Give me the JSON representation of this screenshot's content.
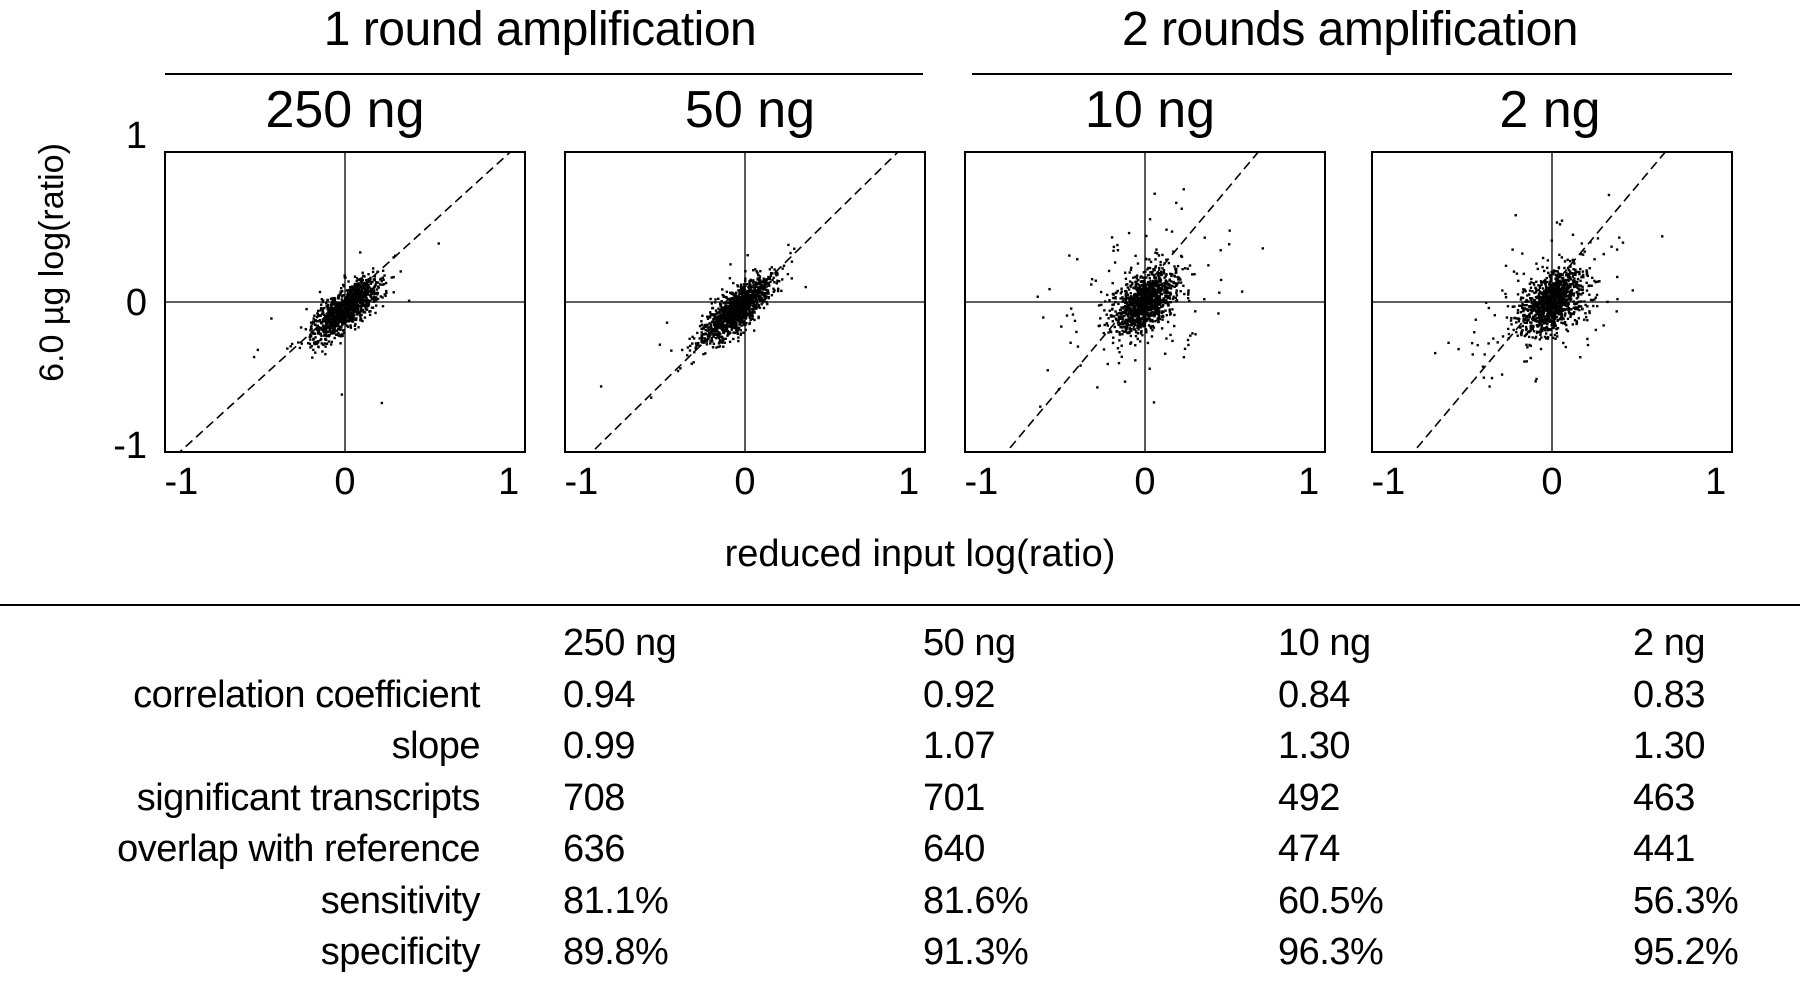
{
  "group_titles": [
    "1 round amplification",
    "2 rounds amplification"
  ],
  "y_axis_label": "6.0 µg log(ratio)",
  "x_axis_label": "reduced input log(ratio)",
  "chart_data": [
    {
      "type": "scatter",
      "title": "250 ng",
      "xlim": [
        -1.1,
        1.1
      ],
      "ylim": [
        -1.0,
        1.0
      ],
      "xticks": [
        "-1",
        "0",
        "1"
      ],
      "yticks": [
        "1",
        "0",
        "-1"
      ],
      "center": [
        0.0,
        -0.05
      ],
      "spread_major": 0.13,
      "spread_minor": 0.05,
      "outliers": 0.02,
      "fit_line": {
        "slope": 0.99,
        "intercept": 0.0
      },
      "point_count": 1200
    },
    {
      "type": "scatter",
      "title": "50 ng",
      "xlim": [
        -1.1,
        1.1
      ],
      "ylim": [
        -1.0,
        1.0
      ],
      "xticks": [
        "-1",
        "0",
        "1"
      ],
      "yticks": [],
      "center": [
        -0.05,
        -0.05
      ],
      "spread_major": 0.14,
      "spread_minor": 0.05,
      "outliers": 0.02,
      "fit_line": {
        "slope": 1.07,
        "intercept": 0.0
      },
      "point_count": 1200
    },
    {
      "type": "scatter",
      "title": "10 ng",
      "xlim": [
        -1.1,
        1.1
      ],
      "ylim": [
        -1.0,
        1.0
      ],
      "xticks": [
        "-1",
        "0",
        "1"
      ],
      "yticks": [],
      "center": [
        0.0,
        0.0
      ],
      "spread_major": 0.12,
      "spread_minor": 0.07,
      "outliers": 0.12,
      "fit_line": {
        "slope": 1.3,
        "intercept": 0.1
      },
      "point_count": 1200
    },
    {
      "type": "scatter",
      "title": "2 ng",
      "xlim": [
        -1.1,
        1.1
      ],
      "ylim": [
        -1.0,
        1.0
      ],
      "xticks": [
        "-1",
        "0",
        "1"
      ],
      "yticks": [],
      "center": [
        0.0,
        0.0
      ],
      "spread_major": 0.12,
      "spread_minor": 0.07,
      "outliers": 0.12,
      "fit_line": {
        "slope": 1.3,
        "intercept": 0.1
      },
      "point_count": 1200
    }
  ],
  "table": {
    "columns": [
      "250 ng",
      "50 ng",
      "10 ng",
      "2 ng"
    ],
    "rows": [
      {
        "label": "correlation coefficient",
        "values": [
          "0.94",
          "0.92",
          "0.84",
          "0.83"
        ]
      },
      {
        "label": "slope",
        "values": [
          "0.99",
          "1.07",
          "1.30",
          "1.30"
        ]
      },
      {
        "label": "significant transcripts",
        "values": [
          "708",
          "701",
          "492",
          "463"
        ]
      },
      {
        "label": "overlap with reference",
        "values": [
          "636",
          "640",
          "474",
          "441"
        ]
      },
      {
        "label": "sensitivity",
        "values": [
          "81.1%",
          "81.6%",
          "60.5%",
          "56.3%"
        ]
      },
      {
        "label": "specificity",
        "values": [
          "89.8%",
          "91.3%",
          "96.3%",
          "95.2%"
        ]
      }
    ]
  }
}
